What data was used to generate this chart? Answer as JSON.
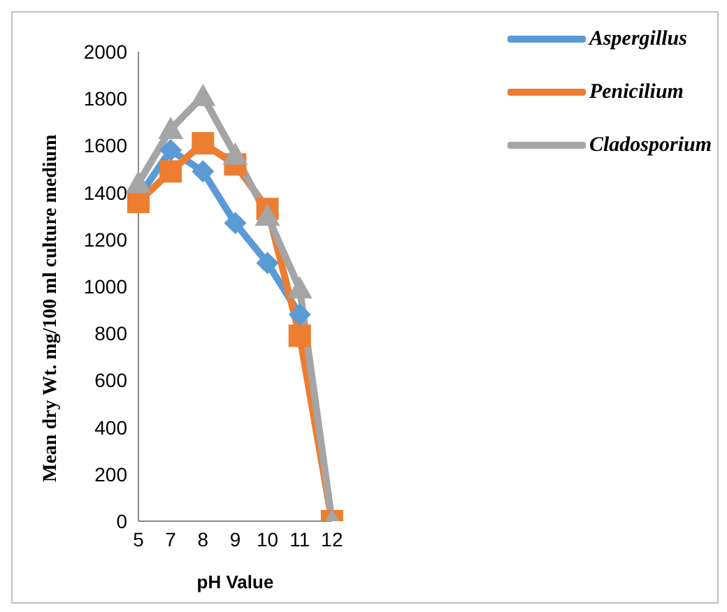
{
  "chart_data": {
    "type": "line",
    "xlabel": "pH Value",
    "ylabel": "Mean dry Wt. mg/100 ml culture medium",
    "categories": [
      "5",
      "7",
      "8",
      "9",
      "10",
      "11",
      "12"
    ],
    "series": [
      {
        "name": "Aspergillus",
        "color": "#5b9bd5",
        "marker": "diamond",
        "values": [
          1380,
          1580,
          1490,
          1270,
          1100,
          880,
          0
        ]
      },
      {
        "name": "Penicilium",
        "color": "#ed7d31",
        "marker": "square",
        "values": [
          1360,
          1490,
          1610,
          1520,
          1330,
          790,
          0
        ]
      },
      {
        "name": "Cladosporium",
        "color": "#a5a5a5",
        "marker": "triangle",
        "values": [
          1440,
          1670,
          1810,
          1560,
          1300,
          990,
          0
        ]
      }
    ],
    "ylim": [
      0,
      2000
    ],
    "yticks": [
      0,
      200,
      400,
      600,
      800,
      1000,
      1200,
      1400,
      1600,
      1800,
      2000
    ],
    "grid": false,
    "legend": "top right"
  }
}
